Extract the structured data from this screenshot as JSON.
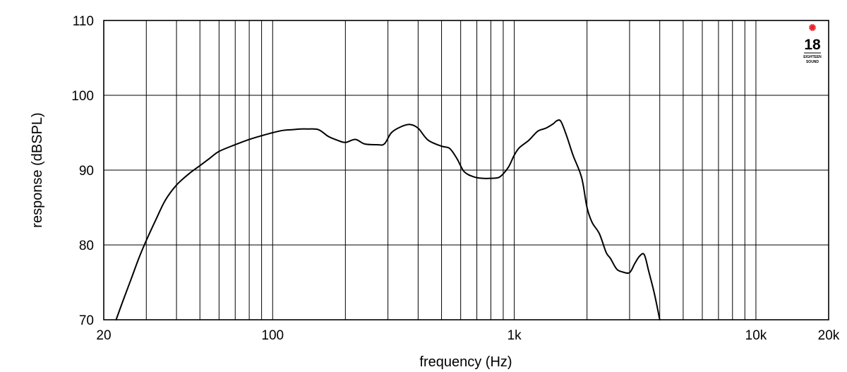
{
  "chart_data": {
    "type": "line",
    "x_scale": "log",
    "xlabel": "frequency (Hz)",
    "ylabel": "response (dBSPL)",
    "xlim": [
      20,
      20000
    ],
    "ylim": [
      70,
      110
    ],
    "grid": true,
    "x_tick_labels": [
      {
        "value": 20,
        "label": "20"
      },
      {
        "value": 100,
        "label": "100"
      },
      {
        "value": 1000,
        "label": "1k"
      },
      {
        "value": 10000,
        "label": "10k"
      },
      {
        "value": 20000,
        "label": "20k"
      }
    ],
    "y_tick_labels": [
      {
        "value": 70,
        "label": "70"
      },
      {
        "value": 80,
        "label": "80"
      },
      {
        "value": 90,
        "label": "90"
      },
      {
        "value": 100,
        "label": "100"
      },
      {
        "value": 110,
        "label": "110"
      }
    ],
    "series": [
      {
        "color": "#000000",
        "x": [
          22.5,
          24,
          26,
          28,
          30,
          33,
          36,
          40,
          45,
          50,
          55,
          60,
          70,
          80,
          90,
          100,
          110,
          120,
          130,
          140,
          155,
          170,
          185,
          200,
          220,
          240,
          270,
          290,
          310,
          340,
          370,
          400,
          440,
          500,
          540,
          580,
          620,
          680,
          740,
          800,
          860,
          900,
          950,
          1000,
          1050,
          1150,
          1250,
          1350,
          1450,
          1500,
          1560,
          1650,
          1750,
          1900,
          2000,
          2100,
          2250,
          2400,
          2500,
          2650,
          2800,
          3000,
          3150,
          3300,
          3450,
          3600,
          3800,
          4000
        ],
        "y": [
          70.0,
          72.5,
          75.5,
          78.3,
          80.6,
          83.5,
          86.0,
          88.0,
          89.5,
          90.6,
          91.6,
          92.5,
          93.4,
          94.1,
          94.6,
          95.0,
          95.3,
          95.4,
          95.5,
          95.5,
          95.4,
          94.5,
          94.0,
          93.7,
          94.1,
          93.5,
          93.4,
          93.5,
          95.0,
          95.8,
          96.1,
          95.6,
          94.0,
          93.2,
          92.9,
          91.5,
          89.8,
          89.1,
          88.9,
          88.9,
          89.0,
          89.5,
          90.5,
          92.0,
          93.0,
          94.0,
          95.2,
          95.6,
          96.2,
          96.6,
          96.5,
          94.5,
          92.0,
          89.0,
          85.0,
          83.0,
          81.5,
          79.0,
          78.2,
          76.8,
          76.4,
          76.3,
          77.5,
          78.5,
          78.7,
          76.5,
          73.5,
          70.0
        ]
      }
    ]
  },
  "logo": {
    "number": "18",
    "line1": "EIGHTEEN",
    "line2": "SOUND",
    "star_color": "#e8242b"
  }
}
